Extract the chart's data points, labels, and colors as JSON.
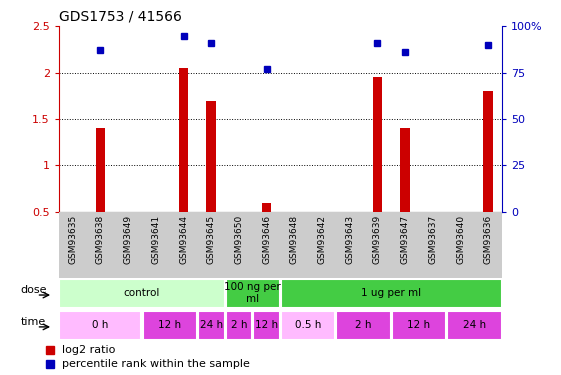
{
  "title": "GDS1753 / 41566",
  "samples": [
    "GSM93635",
    "GSM93638",
    "GSM93649",
    "GSM93641",
    "GSM93644",
    "GSM93645",
    "GSM93650",
    "GSM93646",
    "GSM93648",
    "GSM93642",
    "GSM93643",
    "GSM93639",
    "GSM93647",
    "GSM93637",
    "GSM93640",
    "GSM93636"
  ],
  "log2_ratio": [
    0.0,
    1.4,
    0.0,
    0.0,
    2.05,
    1.7,
    0.0,
    0.6,
    0.0,
    0.0,
    0.0,
    1.95,
    1.4,
    0.0,
    0.0,
    1.8
  ],
  "pct_rank": [
    0.0,
    87.0,
    0.0,
    0.0,
    95.0,
    91.0,
    0.0,
    77.0,
    0.0,
    0.0,
    0.0,
    91.0,
    86.0,
    0.0,
    0.0,
    90.0
  ],
  "ylim_left": [
    0.5,
    2.5
  ],
  "ylim_right": [
    0,
    100
  ],
  "yticks_left": [
    0.5,
    1.0,
    1.5,
    2.0,
    2.5
  ],
  "yticks_right": [
    0,
    25,
    50,
    75,
    100
  ],
  "bar_color": "#cc0000",
  "dot_color": "#0000bb",
  "dose_groups": [
    {
      "label": "control",
      "start": 0,
      "end": 6,
      "color": "#ccffcc"
    },
    {
      "label": "100 ng per\nml",
      "start": 6,
      "end": 8,
      "color": "#44cc44"
    },
    {
      "label": "1 ug per ml",
      "start": 8,
      "end": 16,
      "color": "#44cc44"
    }
  ],
  "time_groups": [
    {
      "label": "0 h",
      "start": 0,
      "end": 3,
      "color": "#ffbbff"
    },
    {
      "label": "12 h",
      "start": 3,
      "end": 5,
      "color": "#dd44dd"
    },
    {
      "label": "24 h",
      "start": 5,
      "end": 6,
      "color": "#dd44dd"
    },
    {
      "label": "2 h",
      "start": 6,
      "end": 7,
      "color": "#dd44dd"
    },
    {
      "label": "12 h",
      "start": 7,
      "end": 8,
      "color": "#dd44dd"
    },
    {
      "label": "0.5 h",
      "start": 8,
      "end": 10,
      "color": "#ffbbff"
    },
    {
      "label": "2 h",
      "start": 10,
      "end": 12,
      "color": "#dd44dd"
    },
    {
      "label": "12 h",
      "start": 12,
      "end": 14,
      "color": "#dd44dd"
    },
    {
      "label": "24 h",
      "start": 14,
      "end": 16,
      "color": "#dd44dd"
    }
  ],
  "dose_row_label": "dose",
  "time_row_label": "time",
  "legend_red": "log2 ratio",
  "legend_blue": "percentile rank within the sample",
  "tick_label_color_left": "#cc0000",
  "tick_label_color_right": "#0000bb",
  "xtick_bg": "#cccccc"
}
